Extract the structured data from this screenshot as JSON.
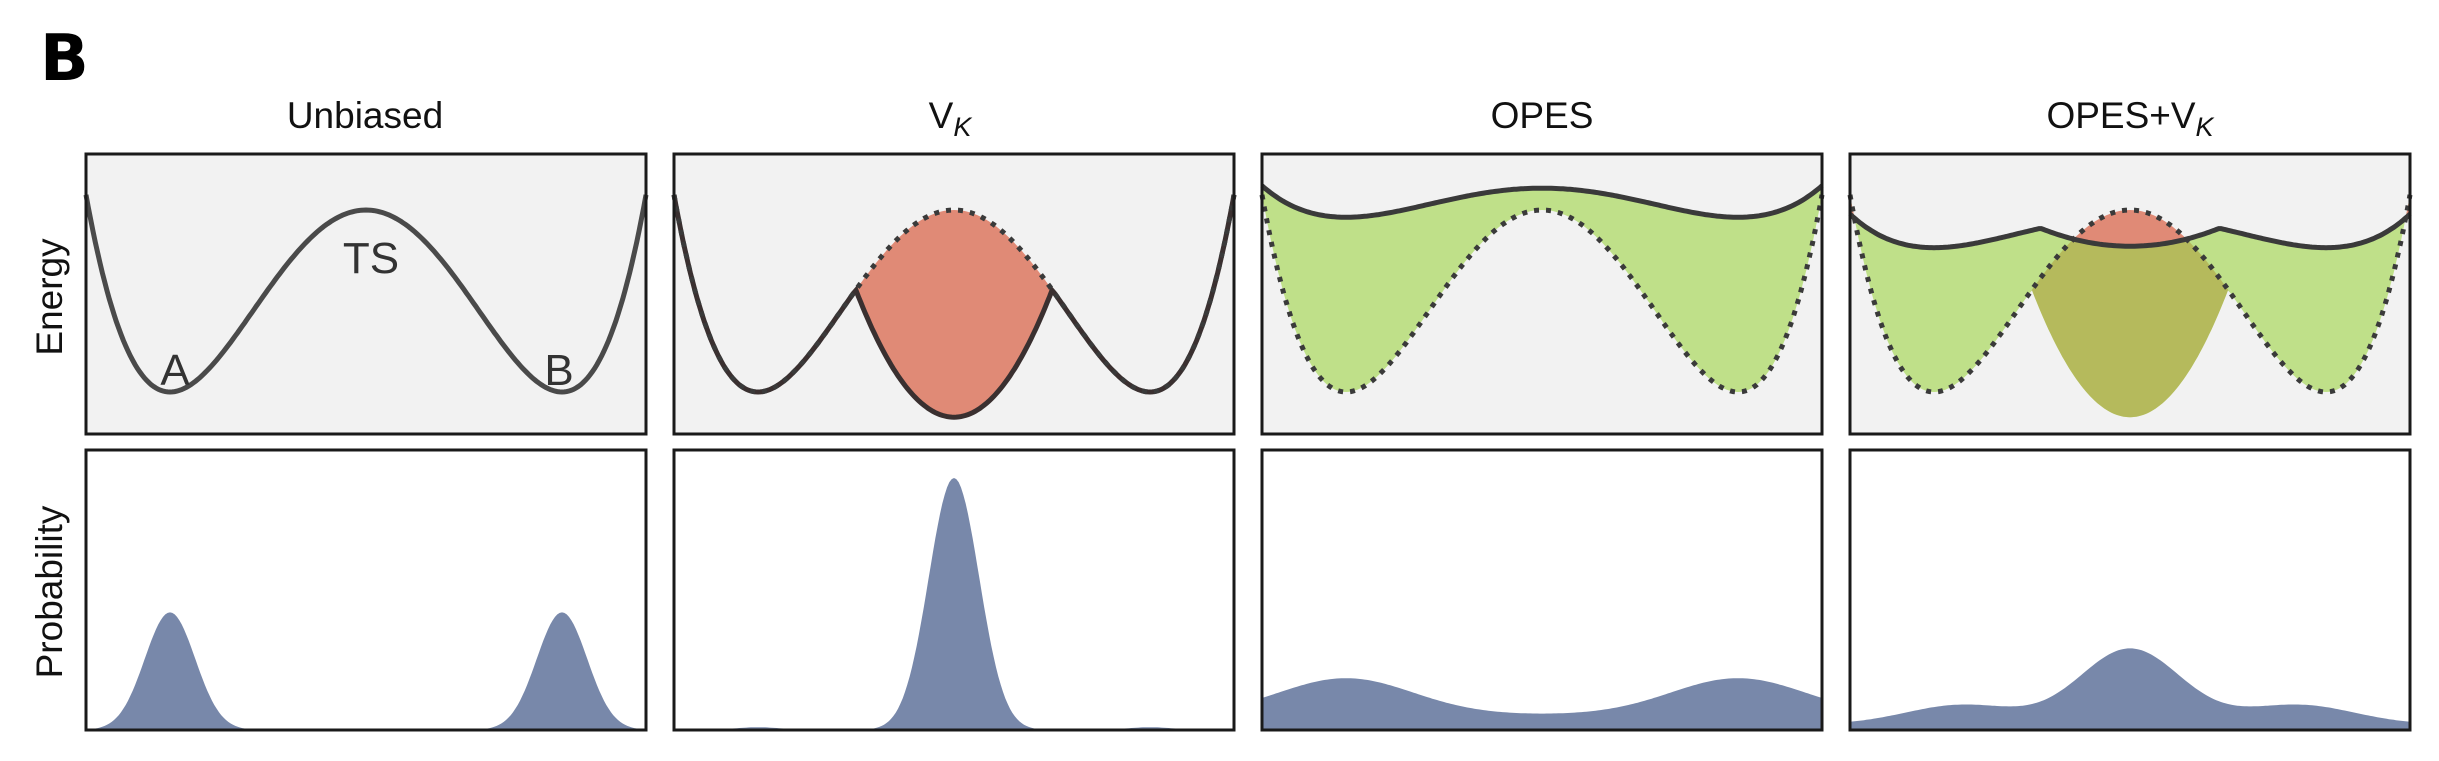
{
  "figure": {
    "panel_label": "B",
    "columns": [
      {
        "title": "Unbiased",
        "title_sub": ""
      },
      {
        "title": "V",
        "title_sub": "K"
      },
      {
        "title": "OPES",
        "title_sub": ""
      },
      {
        "title": "OPES+V",
        "title_sub": "K"
      }
    ],
    "row_labels": {
      "energy": "Energy",
      "probability": "Probability"
    },
    "annotations": {
      "state_a": "A",
      "state_b": "B",
      "transition_state": "TS"
    }
  },
  "colors": {
    "panel_bg": "#f2f2f2",
    "curve": "#4a4a4a",
    "vk_fill": "#e08a76",
    "opes_fill": "#bfe089",
    "overlap_fill": "#b5ba5c",
    "probability_fill": "#7888aa"
  }
}
